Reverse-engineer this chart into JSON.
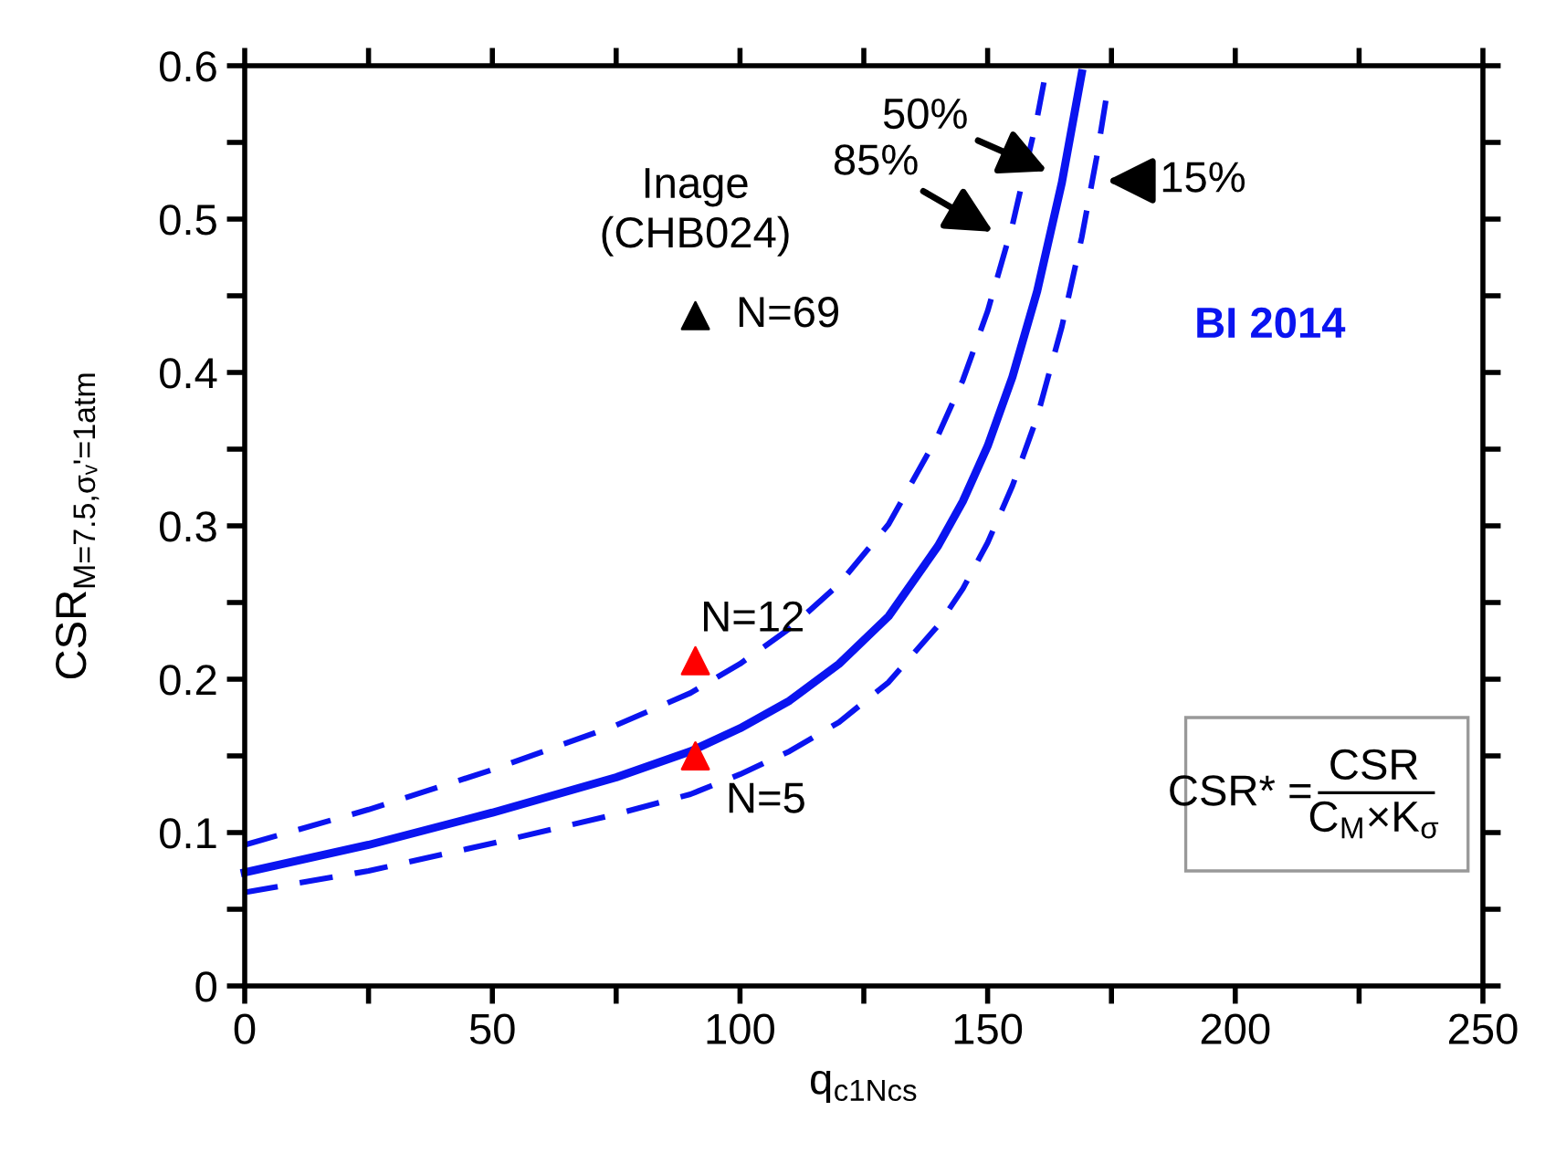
{
  "chart_data": {
    "type": "line",
    "xlabel": "q$_{c1Ncs}$",
    "ylabel": "CSR$_{M=7.5,σᵥ'=1atm}$",
    "xlim": [
      0,
      250
    ],
    "ylim": [
      0,
      0.6
    ],
    "xticks": [
      0,
      {
        "value": 25,
        "label": null
      },
      50,
      {
        "value": 75,
        "label": null
      },
      100,
      {
        "value": 125,
        "label": null
      },
      150,
      {
        "value": 175,
        "label": null
      },
      200,
      {
        "value": 225,
        "label": null
      },
      250
    ],
    "yticks": [
      0,
      {
        "value": 0.05,
        "label": null
      },
      0.1,
      {
        "value": 0.15,
        "label": null
      },
      0.2,
      {
        "value": 0.25,
        "label": null
      },
      0.3,
      {
        "value": 0.35,
        "label": null
      },
      0.4,
      {
        "value": 0.45,
        "label": null
      },
      0.5,
      {
        "value": 0.55,
        "label": null
      },
      0.6
    ],
    "grid": false,
    "legend": false,
    "series": [
      {
        "line_style": "solid",
        "color": "#0a14f0",
        "x": [
          0,
          25,
          50,
          75,
          90,
          100,
          110,
          120,
          130,
          140,
          145,
          150,
          155,
          160,
          165,
          169
        ],
        "values": [
          0.074,
          0.092,
          0.113,
          0.136,
          0.153,
          0.168,
          0.186,
          0.21,
          0.241,
          0.287,
          0.316,
          0.352,
          0.397,
          0.453,
          0.524,
          0.595
        ]
      },
      {
        "line_style": "dashed",
        "color": "#0a14f0",
        "x": [
          0,
          25,
          50,
          75,
          90,
          100,
          110,
          120,
          130,
          140,
          145,
          150,
          155,
          160,
          162
        ],
        "values": [
          0.092,
          0.115,
          0.141,
          0.17,
          0.191,
          0.21,
          0.233,
          0.262,
          0.301,
          0.359,
          0.395,
          0.44,
          0.496,
          0.566,
          0.6
        ]
      },
      {
        "line_style": "dashed",
        "color": "#0a14f0",
        "x": [
          0,
          25,
          50,
          75,
          90,
          100,
          110,
          120,
          130,
          140,
          145,
          150,
          155,
          160,
          165,
          169,
          172,
          174
        ],
        "values": [
          0.061,
          0.075,
          0.093,
          0.112,
          0.125,
          0.138,
          0.153,
          0.172,
          0.198,
          0.235,
          0.259,
          0.289,
          0.326,
          0.371,
          0.43,
          0.488,
          0.54,
          0.58
        ]
      },
      {
        "type": "scatter",
        "marker": "triangle",
        "color": "#000000",
        "x": [
          91
        ],
        "values": [
          0.437
        ]
      },
      {
        "type": "scatter",
        "marker": "triangle",
        "color": "#ff0000",
        "x": [
          91,
          91
        ],
        "values": [
          0.212,
          0.15
        ]
      }
    ],
    "annotations": [
      "Inage\n(CHB024)",
      {
        "text": "N=69",
        "x": 91,
        "y": 0.437
      },
      {
        "text": "N=12",
        "x": 91,
        "y": 0.212
      },
      {
        "text": "N=5",
        "x": 91,
        "y": 0.15
      },
      "BI 2014",
      {
        "text": "50%",
        "x": 163,
        "y": 0.53
      },
      {
        "text": "85%",
        "x": 152,
        "y": 0.49
      },
      {
        "text": "15%",
        "x": 173,
        "y": 0.525
      },
      "CSR* =",
      "CSR",
      "C$_{M}$×K$_{σ}$"
    ]
  }
}
